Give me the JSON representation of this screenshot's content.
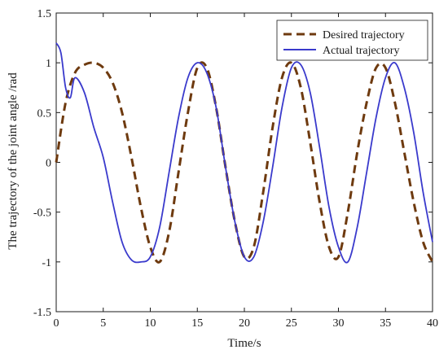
{
  "chart_data": {
    "type": "line",
    "title": "",
    "xlabel": "Time/s",
    "ylabel": "The trajectory of the joint angle /rad",
    "xlim": [
      0,
      40
    ],
    "ylim": [
      -1.5,
      1.5
    ],
    "xticks": [
      0,
      5,
      10,
      15,
      20,
      25,
      30,
      35,
      40
    ],
    "yticks": [
      -1.5,
      -1,
      -0.5,
      0,
      0.5,
      1,
      1.5
    ],
    "xtick_labels": [
      "0",
      "5",
      "10",
      "15",
      "20",
      "25",
      "30",
      "35",
      "40"
    ],
    "ytick_labels": [
      "-1.5",
      "-1",
      "-0.5",
      "0",
      "0.5",
      "1",
      "1.5"
    ],
    "grid": false,
    "legend_position": "top-right",
    "series": [
      {
        "name": "Desired trajectory",
        "color": "#6e3a0f",
        "style": "dashed",
        "x": [
          0,
          1,
          2,
          3,
          4,
          5,
          6,
          7,
          8,
          9,
          10,
          11,
          12,
          13,
          14,
          15,
          16,
          17,
          18,
          19,
          20,
          21,
          22,
          23,
          24,
          25,
          26,
          27,
          28,
          29,
          30,
          31,
          32,
          33,
          34,
          35,
          36,
          37,
          38,
          39,
          40
        ],
        "y": [
          0.0,
          0.6,
          0.9,
          0.98,
          1.0,
          0.95,
          0.8,
          0.5,
          0.05,
          -0.45,
          -0.85,
          -1.0,
          -0.7,
          -0.1,
          0.5,
          0.95,
          0.95,
          0.55,
          -0.05,
          -0.6,
          -0.95,
          -0.85,
          -0.3,
          0.35,
          0.85,
          1.0,
          0.75,
          0.2,
          -0.4,
          -0.85,
          -0.95,
          -0.5,
          0.1,
          0.6,
          0.95,
          0.95,
          0.6,
          0.1,
          -0.4,
          -0.8,
          -1.0
        ]
      },
      {
        "name": "Actual trajectory",
        "color": "#3a3acc",
        "style": "solid",
        "x": [
          0,
          0.5,
          1,
          1.5,
          2,
          3,
          4,
          5,
          6,
          7,
          8,
          9,
          10,
          11,
          12,
          13,
          14,
          15,
          16,
          17,
          18,
          19,
          20,
          21,
          22,
          23,
          24,
          25,
          26,
          27,
          28,
          29,
          30,
          31,
          32,
          33,
          34,
          35,
          36,
          37,
          38,
          39,
          40
        ],
        "y": [
          1.2,
          1.1,
          0.75,
          0.65,
          0.85,
          0.7,
          0.35,
          0.05,
          -0.4,
          -0.8,
          -0.98,
          -1.0,
          -0.95,
          -0.65,
          -0.1,
          0.45,
          0.85,
          1.0,
          0.9,
          0.55,
          -0.05,
          -0.6,
          -0.95,
          -0.95,
          -0.6,
          -0.05,
          0.55,
          0.95,
          0.98,
          0.7,
          0.15,
          -0.45,
          -0.85,
          -1.0,
          -0.65,
          -0.1,
          0.45,
          0.85,
          1.0,
          0.75,
          0.3,
          -0.3,
          -0.8
        ]
      }
    ]
  }
}
